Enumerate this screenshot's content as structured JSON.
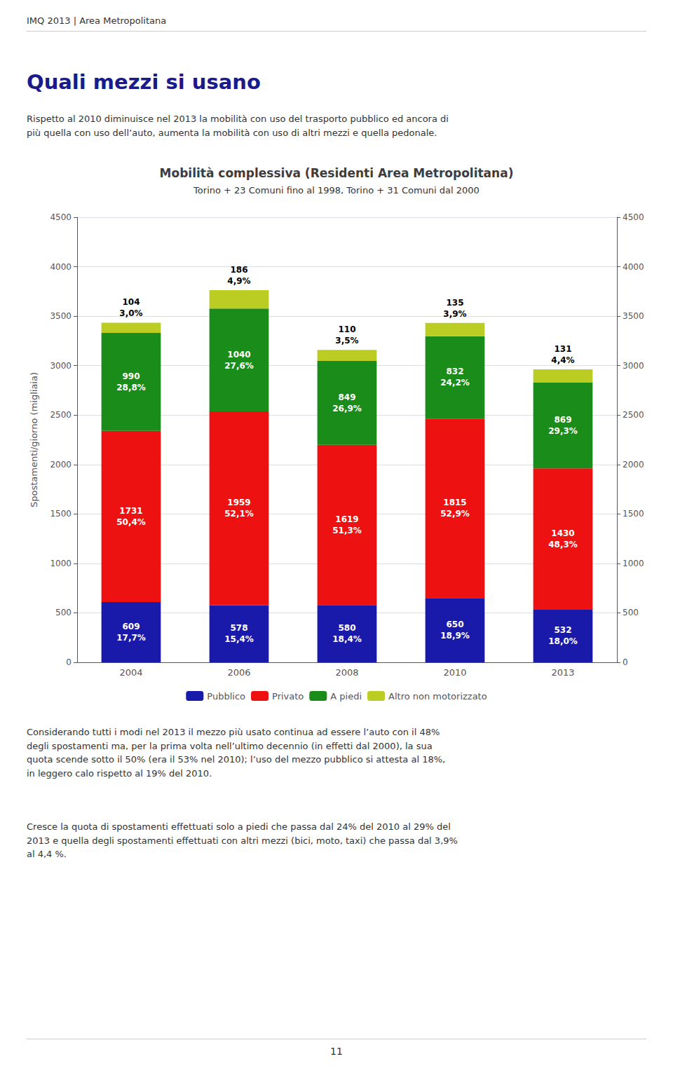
{
  "chart_data": {
    "type": "bar",
    "stacked": true,
    "title": "Mobilità complessiva (Residenti Area Metropolitana)",
    "subtitle": "Torino + 23 Comuni fino al 1998, Torino + 31 Comuni dal 2000",
    "ylabel": "Spostamenti/giorno (migliaia)",
    "categories": [
      "2004",
      "2006",
      "2008",
      "2010",
      "2013"
    ],
    "series": [
      {
        "name": "Pubblico",
        "color": "#1a1aaa",
        "values": [
          609,
          578,
          580,
          650,
          532
        ],
        "percent_labels": [
          "17,7%",
          "15,4%",
          "18,4%",
          "18,9%",
          "18,0%"
        ]
      },
      {
        "name": "Privato",
        "color": "#ee1111",
        "values": [
          1731,
          1959,
          1619,
          1815,
          1430
        ],
        "percent_labels": [
          "50,4%",
          "52,1%",
          "51,3%",
          "52,9%",
          "48,3%"
        ]
      },
      {
        "name": "A piedi",
        "color": "#1a8c1a",
        "values": [
          990,
          1040,
          849,
          832,
          869
        ],
        "percent_labels": [
          "28,8%",
          "27,6%",
          "26,9%",
          "24,2%",
          "29,3%"
        ]
      },
      {
        "name": "Altro non motorizzato",
        "color": "#bbcc22",
        "values": [
          104,
          186,
          110,
          135,
          131
        ],
        "percent_labels": [
          "3,0%",
          "4,9%",
          "3,5%",
          "3,9%",
          "4,4%"
        ]
      }
    ],
    "ylim": [
      0,
      4500
    ],
    "yticks": [
      0,
      500,
      1000,
      1500,
      2000,
      2500,
      3000,
      3500,
      4000,
      4500
    ],
    "y2lim": [
      0,
      4500
    ],
    "y2ticks": [
      0,
      500,
      1000,
      1500,
      2000,
      2500,
      3000,
      3500,
      4000,
      4500
    ],
    "grid": true,
    "legend": "bottom",
    "data_labels": true,
    "annotations": [
      "IMQ 2013 | Area Metropolitana",
      "Quali mezzi si usano",
      "Rispetto al 2010 diminuisce nel 2013 la mobilità con uso del trasporto pubblico ed ancora di\npiù quella con uso dell’auto, aumenta la mobilità con uso di altri mezzi e quella pedonale.",
      "Considerando tutti i modi nel 2013 il mezzo più usato continua ad essere l’auto con il 48%\ndegli spostamenti ma, per la prima volta nell’ultimo decennio (in effetti dal 2000), la sua\nquota scende sotto il 50% (era il 53% nel 2010); l’uso del mezzo pubblico si attesta al 18%,\nin leggero calo rispetto al 19% del 2010.",
      "Cresce la quota di spostamenti effettuati solo a piedi che passa dal 24% del 2010 al 29% del\n2013 e quella degli spostamenti effettuati con altri mezzi (bici, moto, taxi) che passa dal 3,9%\nal 4,4 %.",
      "11"
    ]
  }
}
